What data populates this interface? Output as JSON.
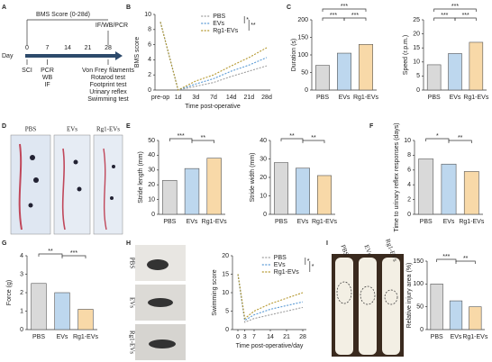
{
  "panel_labels": [
    "A",
    "B",
    "C",
    "D",
    "E",
    "F",
    "G",
    "H",
    "I"
  ],
  "timeline": {
    "bracket_label": "BMS Score (0-28d)",
    "end_label": "IF/WB/PCR",
    "axis_label": "Day",
    "days": [
      0,
      7,
      14,
      21,
      28
    ],
    "day0_events": [
      "SCI"
    ],
    "day7_events": [
      "PCR",
      "WB",
      "IF"
    ],
    "day28_events": [
      "Von Frey filaments",
      "Rotarod test",
      "Footprint test",
      "Urinary reflex",
      "Swimming test"
    ]
  },
  "photo_labels": {
    "D": [
      "PBS",
      "EVs",
      "Rg1-EVs"
    ],
    "H": [
      "PBS",
      "EVs",
      "Rg1-EVs"
    ],
    "I": [
      "PBS",
      "EVs",
      "Rg1-EVs"
    ]
  },
  "chart_data": [
    {
      "type": "line",
      "ylabel": "BMS score",
      "xlabel": "Time post-operative",
      "categories": [
        "pre-op",
        "1d",
        "3d",
        "7d",
        "14d",
        "21d",
        "28d"
      ],
      "ylim": [
        0,
        10
      ],
      "yticks": [
        0,
        2,
        4,
        6,
        8,
        10
      ],
      "series": [
        {
          "name": "PBS",
          "color": "#9e9e9e",
          "values": [
            9,
            0,
            0.5,
            1,
            1.8,
            2.5,
            3.2
          ]
        },
        {
          "name": "EVs",
          "color": "#5b9bd5",
          "values": [
            9,
            0,
            0.8,
            1.5,
            2.5,
            3.3,
            4.3
          ]
        },
        {
          "name": "Rg1-EVs",
          "color": "#b5982f",
          "values": [
            9,
            0,
            1.2,
            2,
            3.2,
            4.3,
            5.6
          ]
        }
      ],
      "annotations": [
        "*",
        "**"
      ]
    },
    {
      "type": "bar",
      "ylabel": "Duration (s)",
      "categories": [
        "PBS",
        "EVs",
        "Rg1-EVs"
      ],
      "values": [
        70,
        105,
        130
      ],
      "colors": [
        "#d9d9d9",
        "#bdd7ee",
        "#f8d9a8"
      ],
      "ylim": [
        0,
        200
      ],
      "yticks": [
        0,
        50,
        100,
        150,
        200
      ],
      "annotations": [
        "***",
        "***",
        "***"
      ]
    },
    {
      "type": "bar",
      "ylabel": "Speed (r.p.m.)",
      "categories": [
        "PBS",
        "EVs",
        "Rg1-EVs"
      ],
      "values": [
        9,
        13,
        17
      ],
      "colors": [
        "#d9d9d9",
        "#bdd7ee",
        "#f8d9a8"
      ],
      "ylim": [
        0,
        25
      ],
      "yticks": [
        0,
        5,
        10,
        15,
        20,
        25
      ],
      "annotations": [
        "***",
        "***",
        "***"
      ]
    },
    {
      "type": "bar",
      "ylabel": "Stride length (mm)",
      "categories": [
        "PBS",
        "EVs",
        "Rg1-EVs"
      ],
      "values": [
        23,
        31,
        38
      ],
      "colors": [
        "#d9d9d9",
        "#bdd7ee",
        "#f8d9a8"
      ],
      "ylim": [
        0,
        50
      ],
      "yticks": [
        0,
        10,
        20,
        30,
        40,
        50
      ],
      "annotations": [
        "***",
        "**"
      ]
    },
    {
      "type": "bar",
      "ylabel": "Stride width (mm)",
      "categories": [
        "PBS",
        "EVs",
        "Rg1-EVs"
      ],
      "values": [
        28,
        25,
        21
      ],
      "colors": [
        "#d9d9d9",
        "#bdd7ee",
        "#f8d9a8"
      ],
      "ylim": [
        0,
        40
      ],
      "yticks": [
        0,
        10,
        20,
        30,
        40
      ],
      "annotations": [
        "**",
        "**"
      ]
    },
    {
      "type": "bar",
      "ylabel": "Time to urinary reflex responses (days)",
      "categories": [
        "PBS",
        "EVs",
        "Rg1-EVs"
      ],
      "values": [
        7.5,
        6.8,
        5.8
      ],
      "colors": [
        "#d9d9d9",
        "#bdd7ee",
        "#f8d9a8"
      ],
      "ylim": [
        0,
        10
      ],
      "yticks": [
        0,
        2,
        4,
        6,
        8,
        10
      ],
      "annotations": [
        "*",
        "**"
      ]
    },
    {
      "type": "bar",
      "ylabel": "Force (g)",
      "categories": [
        "PBS",
        "EVs",
        "Rg1-EVs"
      ],
      "values": [
        2.5,
        2.0,
        1.1
      ],
      "colors": [
        "#d9d9d9",
        "#bdd7ee",
        "#f8d9a8"
      ],
      "ylim": [
        0,
        4
      ],
      "yticks": [
        0,
        1,
        2,
        3,
        4
      ],
      "annotations": [
        "**",
        "***"
      ]
    },
    {
      "type": "line",
      "ylabel": "Swimming score",
      "xlabel": "Time post-operative/day",
      "x": [
        0,
        3,
        7,
        14,
        21,
        28
      ],
      "xlim": [
        0,
        28
      ],
      "xticks": [
        0,
        3,
        7,
        14,
        21,
        28
      ],
      "ylim": [
        0,
        20
      ],
      "yticks": [
        0,
        5,
        10,
        15,
        20
      ],
      "series": [
        {
          "name": "PBS",
          "color": "#9e9e9e",
          "values": [
            15,
            2,
            3,
            4,
            5,
            6
          ]
        },
        {
          "name": "EVs",
          "color": "#5b9bd5",
          "values": [
            15,
            2.5,
            4,
            5.5,
            6.5,
            7.5
          ]
        },
        {
          "name": "Rg1-EVs",
          "color": "#b5982f",
          "values": [
            15,
            3,
            5,
            7,
            8.5,
            10
          ]
        }
      ],
      "annotations": [
        "*",
        "*"
      ]
    },
    {
      "type": "bar",
      "ylabel": "Relative injury area (%)",
      "categories": [
        "PBS",
        "EVs",
        "Rg1-EVs"
      ],
      "values": [
        100,
        63,
        50
      ],
      "colors": [
        "#d9d9d9",
        "#bdd7ee",
        "#f8d9a8"
      ],
      "ylim": [
        0,
        150
      ],
      "yticks": [
        0,
        50,
        100,
        150
      ],
      "annotations": [
        "***",
        "**"
      ]
    }
  ]
}
